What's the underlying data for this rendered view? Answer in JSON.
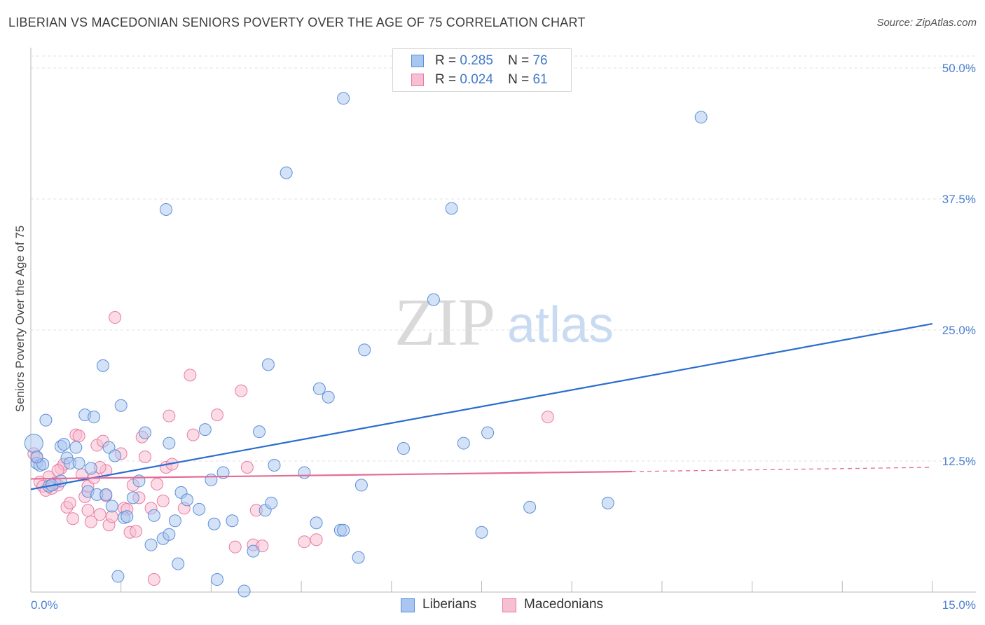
{
  "title": "LIBERIAN VS MACEDONIAN SENIORS POVERTY OVER THE AGE OF 75 CORRELATION CHART",
  "source": "Source: ZipAtlas.com",
  "watermark": {
    "zip": "ZIP",
    "atlas": "atlas"
  },
  "legend_top": {
    "r_label": "R =",
    "n_label": "N =",
    "rows": [
      {
        "r": "0.285",
        "n": "76"
      },
      {
        "r": "0.024",
        "n": "61"
      }
    ]
  },
  "legend_bottom": {
    "items": [
      "Liberians",
      "Macedonians"
    ]
  },
  "chart_data": {
    "type": "scatter",
    "ylabel": "Seniors Poverty Over the Age of 75",
    "xlabel": "",
    "xlim": [
      0,
      15
    ],
    "ylim": [
      0,
      50
    ],
    "x_tick_labels": [
      "0.0%",
      "15.0%"
    ],
    "y_ticks": [
      12.5,
      25.0,
      37.5,
      50.0
    ],
    "y_tick_labels": [
      "12.5%",
      "25.0%",
      "37.5%",
      "50.0%"
    ],
    "colors": {
      "Liberians": "#5b8fd8",
      "Liberians_fill": "#a9c6f0",
      "Macedonians": "#e87aa2",
      "Macedonians_fill": "#f7bfd2",
      "Liberians_line": "#2a6dd0",
      "Macedonians_line": "#e46c96",
      "tick": "#4a7fd0"
    },
    "series": [
      {
        "name": "Liberians",
        "R": 0.285,
        "N": 76,
        "trend": {
          "x0": 0,
          "y0": 9.8,
          "x1": 15,
          "y1": 25.6
        },
        "points": [
          [
            0.05,
            14.2
          ],
          [
            0.1,
            12.3
          ],
          [
            0.15,
            12.1
          ],
          [
            0.2,
            12.2
          ],
          [
            0.25,
            16.4
          ],
          [
            0.3,
            10.1
          ],
          [
            0.35,
            10.2
          ],
          [
            0.5,
            13.9
          ],
          [
            0.5,
            10.6
          ],
          [
            0.55,
            14.1
          ],
          [
            0.6,
            12.8
          ],
          [
            0.65,
            12.3
          ],
          [
            0.75,
            13.8
          ],
          [
            0.8,
            12.3
          ],
          [
            0.9,
            16.9
          ],
          [
            0.95,
            9.6
          ],
          [
            1.0,
            11.8
          ],
          [
            1.05,
            16.7
          ],
          [
            1.1,
            9.3
          ],
          [
            1.2,
            21.6
          ],
          [
            1.25,
            9.3
          ],
          [
            1.3,
            13.8
          ],
          [
            1.35,
            8.2
          ],
          [
            1.4,
            13.0
          ],
          [
            1.45,
            1.5
          ],
          [
            1.5,
            17.8
          ],
          [
            1.55,
            7.1
          ],
          [
            1.6,
            7.2
          ],
          [
            1.7,
            9.0
          ],
          [
            1.8,
            10.6
          ],
          [
            1.9,
            15.2
          ],
          [
            2.0,
            4.5
          ],
          [
            2.05,
            7.3
          ],
          [
            2.2,
            5.1
          ],
          [
            2.25,
            36.5
          ],
          [
            2.3,
            5.5
          ],
          [
            2.3,
            14.2
          ],
          [
            2.4,
            6.8
          ],
          [
            2.45,
            2.7
          ],
          [
            2.5,
            9.5
          ],
          [
            2.6,
            8.8
          ],
          [
            2.8,
            7.9
          ],
          [
            2.9,
            15.5
          ],
          [
            3.0,
            10.7
          ],
          [
            3.05,
            6.5
          ],
          [
            3.1,
            1.2
          ],
          [
            3.2,
            11.4
          ],
          [
            3.35,
            6.8
          ],
          [
            3.55,
            0.1
          ],
          [
            3.7,
            3.9
          ],
          [
            3.8,
            15.3
          ],
          [
            3.9,
            7.8
          ],
          [
            3.95,
            21.7
          ],
          [
            4.0,
            8.5
          ],
          [
            4.05,
            12.1
          ],
          [
            4.25,
            40.0
          ],
          [
            4.55,
            11.4
          ],
          [
            4.75,
            6.6
          ],
          [
            4.8,
            19.4
          ],
          [
            4.95,
            18.6
          ],
          [
            5.15,
            5.9
          ],
          [
            5.2,
            5.9
          ],
          [
            5.2,
            47.1
          ],
          [
            5.45,
            3.3
          ],
          [
            5.5,
            10.2
          ],
          [
            5.55,
            23.1
          ],
          [
            6.2,
            13.7
          ],
          [
            6.7,
            27.9
          ],
          [
            7.0,
            36.6
          ],
          [
            7.2,
            14.2
          ],
          [
            7.5,
            5.7
          ],
          [
            7.6,
            15.2
          ],
          [
            8.3,
            8.1
          ],
          [
            9.6,
            8.5
          ],
          [
            11.15,
            45.3
          ],
          [
            0.1,
            12.9
          ]
        ]
      },
      {
        "name": "Macedonians",
        "R": 0.024,
        "N": 61,
        "trend": {
          "x0": 0,
          "y0": 10.8,
          "x1": 10.0,
          "y1": 11.5,
          "dash_x1": 15,
          "dash_y1": 11.9
        },
        "points": [
          [
            0.05,
            13.2
          ],
          [
            0.1,
            12.8
          ],
          [
            0.15,
            10.5
          ],
          [
            0.2,
            10.1
          ],
          [
            0.25,
            9.7
          ],
          [
            0.3,
            11.0
          ],
          [
            0.35,
            9.9
          ],
          [
            0.45,
            10.2
          ],
          [
            0.5,
            11.8
          ],
          [
            0.55,
            12.2
          ],
          [
            0.6,
            8.1
          ],
          [
            0.65,
            8.5
          ],
          [
            0.7,
            7.0
          ],
          [
            0.75,
            15.0
          ],
          [
            0.8,
            14.9
          ],
          [
            0.85,
            11.2
          ],
          [
            0.9,
            9.1
          ],
          [
            0.95,
            10.1
          ],
          [
            1.0,
            6.7
          ],
          [
            1.05,
            10.9
          ],
          [
            1.1,
            14.0
          ],
          [
            1.15,
            7.4
          ],
          [
            1.2,
            14.4
          ],
          [
            1.25,
            11.6
          ],
          [
            1.3,
            6.4
          ],
          [
            1.35,
            7.2
          ],
          [
            1.4,
            26.2
          ],
          [
            1.5,
            13.2
          ],
          [
            1.55,
            8.0
          ],
          [
            1.6,
            7.9
          ],
          [
            1.65,
            5.7
          ],
          [
            1.7,
            10.2
          ],
          [
            1.75,
            5.8
          ],
          [
            1.8,
            9.0
          ],
          [
            1.85,
            14.8
          ],
          [
            1.9,
            12.9
          ],
          [
            2.0,
            8.0
          ],
          [
            2.05,
            1.2
          ],
          [
            2.1,
            10.3
          ],
          [
            2.2,
            8.7
          ],
          [
            2.25,
            11.9
          ],
          [
            2.3,
            16.8
          ],
          [
            2.35,
            12.2
          ],
          [
            2.55,
            8.0
          ],
          [
            2.65,
            20.7
          ],
          [
            2.7,
            15.0
          ],
          [
            3.1,
            16.9
          ],
          [
            3.4,
            4.3
          ],
          [
            3.5,
            19.2
          ],
          [
            3.6,
            11.9
          ],
          [
            3.7,
            4.5
          ],
          [
            3.75,
            7.8
          ],
          [
            3.85,
            4.4
          ],
          [
            4.55,
            4.8
          ],
          [
            4.75,
            5.0
          ],
          [
            8.6,
            16.7
          ],
          [
            0.4,
            10.4
          ],
          [
            0.45,
            11.6
          ],
          [
            0.95,
            7.8
          ],
          [
            1.15,
            11.9
          ],
          [
            1.25,
            9.2
          ]
        ]
      }
    ]
  }
}
